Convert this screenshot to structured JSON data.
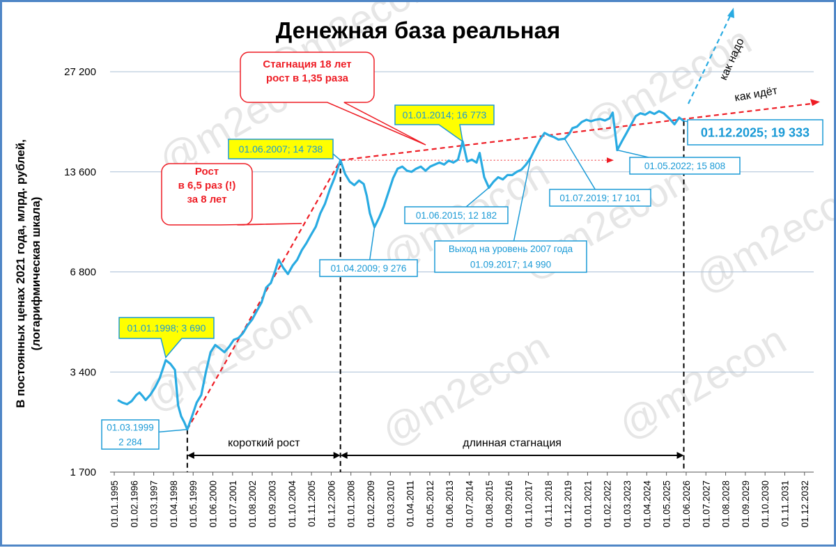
{
  "chart_data": {
    "type": "line",
    "title": "Денежная база реальная",
    "ylabel_line1": "В постоянных ценах 2021 года, млрд. рублей,",
    "ylabel_line2": "(логарифмическая шкала)",
    "scale": "log",
    "ylim": [
      1700,
      27200
    ],
    "y_ticks": [
      {
        "value": 1700,
        "label": "1 700"
      },
      {
        "value": 3400,
        "label": "3 400"
      },
      {
        "value": 6800,
        "label": "6 800"
      },
      {
        "value": 13600,
        "label": "13 600"
      },
      {
        "value": 27200,
        "label": "27 200"
      }
    ],
    "x_tick_labels": [
      "01.01.1995",
      "01.02.1996",
      "01.03.1997",
      "01.04.1998",
      "01.05.1999",
      "01.06.2000",
      "01.07.2001",
      "01.08.2002",
      "01.09.2003",
      "01.10.2004",
      "01.11.2005",
      "01.12.2006",
      "01.01.2008",
      "01.02.2009",
      "01.03.2010",
      "01.04.2011",
      "01.05.2012",
      "01.06.2013",
      "01.07.2014",
      "01.08.2015",
      "01.09.2016",
      "01.10.2017",
      "01.11.2018",
      "01.12.2019",
      "01.01.2021",
      "01.02.2022",
      "01.03.2023",
      "01.04.2024",
      "01.05.2025",
      "01.06.2026",
      "01.07.2027",
      "01.08.2028",
      "01.09.2029",
      "01.10.2030",
      "01.11.2031",
      "01.12.2032"
    ],
    "grid": true,
    "series": [
      {
        "color": "#29abe2",
        "points": [
          [
            "1995-06-01",
            2800
          ],
          [
            "1995-09-01",
            2750
          ],
          [
            "1995-12-01",
            2720
          ],
          [
            "1996-03-01",
            2780
          ],
          [
            "1996-06-01",
            2900
          ],
          [
            "1996-08-01",
            2950
          ],
          [
            "1996-10-01",
            2880
          ],
          [
            "1996-12-01",
            2800
          ],
          [
            "1997-03-01",
            2900
          ],
          [
            "1997-06-01",
            3050
          ],
          [
            "1997-09-01",
            3250
          ],
          [
            "1998-01-01",
            3690
          ],
          [
            "1998-04-01",
            3600
          ],
          [
            "1998-07-01",
            3450
          ],
          [
            "1998-09-01",
            2700
          ],
          [
            "1998-11-01",
            2500
          ],
          [
            "1999-01-01",
            2400
          ],
          [
            "1999-03-01",
            2284
          ],
          [
            "1999-06-01",
            2500
          ],
          [
            "1999-09-01",
            2750
          ],
          [
            "1999-12-01",
            2900
          ],
          [
            "2000-03-01",
            3400
          ],
          [
            "2000-06-01",
            3900
          ],
          [
            "2000-09-01",
            4100
          ],
          [
            "2000-12-01",
            4000
          ],
          [
            "2001-03-01",
            3900
          ],
          [
            "2001-06-01",
            4050
          ],
          [
            "2001-09-01",
            4250
          ],
          [
            "2001-12-01",
            4300
          ],
          [
            "2002-03-01",
            4450
          ],
          [
            "2002-06-01",
            4700
          ],
          [
            "2002-09-01",
            4900
          ],
          [
            "2002-12-01",
            5200
          ],
          [
            "2003-03-01",
            5500
          ],
          [
            "2003-06-01",
            6100
          ],
          [
            "2003-09-01",
            6300
          ],
          [
            "2003-12-01",
            6900
          ],
          [
            "2004-02-01",
            7400
          ],
          [
            "2004-05-01",
            7000
          ],
          [
            "2004-08-01",
            6700
          ],
          [
            "2004-11-01",
            7100
          ],
          [
            "2005-02-01",
            7400
          ],
          [
            "2005-05-01",
            7900
          ],
          [
            "2005-08-01",
            8300
          ],
          [
            "2005-11-01",
            8800
          ],
          [
            "2006-02-01",
            9300
          ],
          [
            "2006-05-01",
            10200
          ],
          [
            "2006-08-01",
            10900
          ],
          [
            "2006-11-01",
            12000
          ],
          [
            "2007-02-01",
            13000
          ],
          [
            "2007-06-01",
            14738
          ],
          [
            "2007-09-01",
            13400
          ],
          [
            "2007-12-01",
            12700
          ],
          [
            "2008-03-01",
            12400
          ],
          [
            "2008-06-01",
            12800
          ],
          [
            "2008-09-01",
            12500
          ],
          [
            "2008-11-01",
            11500
          ],
          [
            "2009-01-01",
            10200
          ],
          [
            "2009-04-01",
            9276
          ],
          [
            "2009-07-01",
            9900
          ],
          [
            "2009-10-01",
            10700
          ],
          [
            "2010-01-01",
            11800
          ],
          [
            "2010-04-01",
            13000
          ],
          [
            "2010-07-01",
            13900
          ],
          [
            "2010-10-01",
            14100
          ],
          [
            "2011-01-01",
            13700
          ],
          [
            "2011-04-01",
            13600
          ],
          [
            "2011-07-01",
            13900
          ],
          [
            "2011-10-01",
            14100
          ],
          [
            "2012-01-01",
            13700
          ],
          [
            "2012-04-01",
            14100
          ],
          [
            "2012-07-01",
            14300
          ],
          [
            "2012-10-01",
            14500
          ],
          [
            "2013-01-01",
            14300
          ],
          [
            "2013-04-01",
            14700
          ],
          [
            "2013-07-01",
            14500
          ],
          [
            "2013-10-01",
            14800
          ],
          [
            "2014-01-01",
            16773
          ],
          [
            "2014-04-01",
            14600
          ],
          [
            "2014-07-01",
            14800
          ],
          [
            "2014-10-01",
            14500
          ],
          [
            "2014-12-01",
            15500
          ],
          [
            "2015-03-01",
            13100
          ],
          [
            "2015-06-01",
            12182
          ],
          [
            "2015-09-01",
            12700
          ],
          [
            "2015-12-01",
            13100
          ],
          [
            "2016-03-01",
            12900
          ],
          [
            "2016-06-01",
            13300
          ],
          [
            "2016-09-01",
            13300
          ],
          [
            "2016-12-01",
            13600
          ],
          [
            "2017-03-01",
            13800
          ],
          [
            "2017-06-01",
            14300
          ],
          [
            "2017-09-01",
            14990
          ],
          [
            "2017-12-01",
            16000
          ],
          [
            "2018-03-01",
            17000
          ],
          [
            "2018-06-01",
            17800
          ],
          [
            "2018-09-01",
            17500
          ],
          [
            "2018-12-01",
            17300
          ],
          [
            "2019-03-01",
            17000
          ],
          [
            "2019-07-01",
            17101
          ],
          [
            "2019-10-01",
            17700
          ],
          [
            "2019-12-01",
            18400
          ],
          [
            "2020-03-01",
            18600
          ],
          [
            "2020-06-01",
            19200
          ],
          [
            "2020-09-01",
            19500
          ],
          [
            "2020-12-01",
            19300
          ],
          [
            "2021-03-01",
            19500
          ],
          [
            "2021-06-01",
            19600
          ],
          [
            "2021-09-01",
            19400
          ],
          [
            "2021-12-01",
            19700
          ],
          [
            "2022-02-01",
            20500
          ],
          [
            "2022-05-01",
            15808
          ],
          [
            "2022-08-01",
            16800
          ],
          [
            "2022-11-01",
            17800
          ],
          [
            "2023-02-01",
            18900
          ],
          [
            "2023-05-01",
            20000
          ],
          [
            "2023-08-01",
            20400
          ],
          [
            "2023-11-01",
            20200
          ],
          [
            "2024-02-01",
            20600
          ],
          [
            "2024-05-01",
            20300
          ],
          [
            "2024-08-01",
            20700
          ],
          [
            "2024-11-01",
            20400
          ],
          [
            "2025-03-01",
            19600
          ],
          [
            "2025-06-01",
            18900
          ],
          [
            "2025-09-01",
            19800
          ],
          [
            "2025-12-01",
            19333
          ]
        ]
      }
    ]
  },
  "annotations": [
    {
      "id": "a1998",
      "type": "star",
      "text": "01.01.1998;  3 690"
    },
    {
      "id": "a1999",
      "type": "box",
      "text": "01.03.1999",
      "text2": "2 284"
    },
    {
      "id": "a2007",
      "type": "box",
      "text": "01.06.2007; 14 738"
    },
    {
      "id": "a2014",
      "type": "box",
      "text": "01.01.2014;  16 773"
    },
    {
      "id": "a2009",
      "type": "box",
      "text": "01.04.2009;  9 276"
    },
    {
      "id": "a2015",
      "type": "box",
      "text": "01.06.2015;  12 182"
    },
    {
      "id": "a2017",
      "type": "box",
      "text": "Выход на уровень 2007 года",
      "text2": "01.09.2017;  14 990"
    },
    {
      "id": "a2019",
      "type": "box",
      "text": "01.07.2019;  17 101"
    },
    {
      "id": "a2022",
      "type": "box",
      "text": "01.05.2022;  15 808"
    },
    {
      "id": "a2025",
      "type": "box",
      "text": "01.12.2025;  19 333"
    },
    {
      "id": "rost",
      "type": "red",
      "text": "Рост",
      "text2": "в 6,5 раз (!)",
      "text3": "за 8 лет"
    },
    {
      "id": "stag",
      "type": "red",
      "text": "Стагнация 18 лет",
      "text2": "рост в 1,35 раза"
    }
  ],
  "span_labels": {
    "short_growth": "короткий рост",
    "long_stagnation": "длинная стагнация"
  },
  "trend_labels": {
    "actual": "как идёт",
    "needed": "как надо"
  },
  "watermark": "@m2econ",
  "colors": {
    "line": "#29abe2",
    "annotation_text": "#1a9ad6",
    "trend_red": "#ee1c24",
    "needed_blue": "#29abe2",
    "star_fill": "#ffff00",
    "frame": "#4f86c6"
  }
}
